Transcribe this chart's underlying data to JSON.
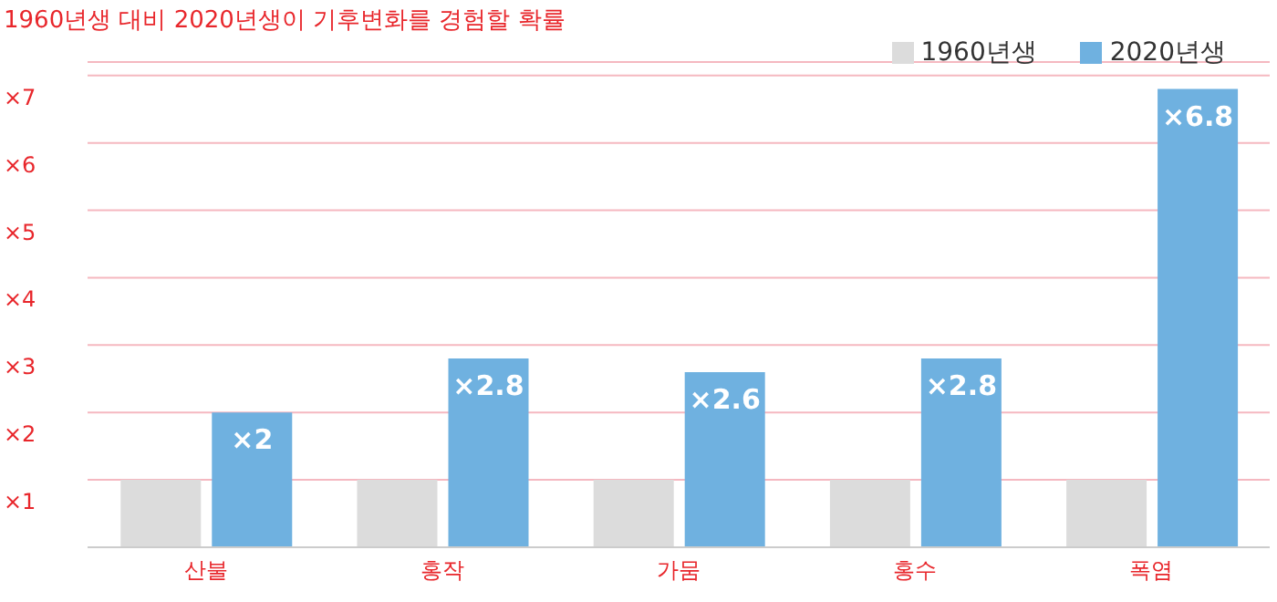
{
  "chart_data": {
    "type": "bar",
    "title": "1960년생 대비 2020년생이 기후변화를 경험할 확률",
    "categories": [
      "산불",
      "홍작",
      "가뭄",
      "홍수",
      "폭염"
    ],
    "series": [
      {
        "name": "1960년생",
        "color": "#dcdcdc",
        "values": [
          1,
          1,
          1,
          1,
          1
        ]
      },
      {
        "name": "2020년생",
        "color": "#6fb1e0",
        "values": [
          2,
          2.8,
          2.6,
          2.8,
          6.8
        ],
        "value_labels": [
          "×2",
          "×2.8",
          "×2.6",
          "×2.8",
          "×6.8"
        ]
      }
    ],
    "ylim": [
      0,
      7.2
    ],
    "yticks": [
      {
        "value": 1,
        "label": "×1"
      },
      {
        "value": 2,
        "label": "×2"
      },
      {
        "value": 3,
        "label": "×3"
      },
      {
        "value": 4,
        "label": "×4"
      },
      {
        "value": 5,
        "label": "×5"
      },
      {
        "value": 6,
        "label": "×6"
      },
      {
        "value": 7,
        "label": "×7"
      }
    ],
    "grid": "y",
    "legend": "top right"
  }
}
